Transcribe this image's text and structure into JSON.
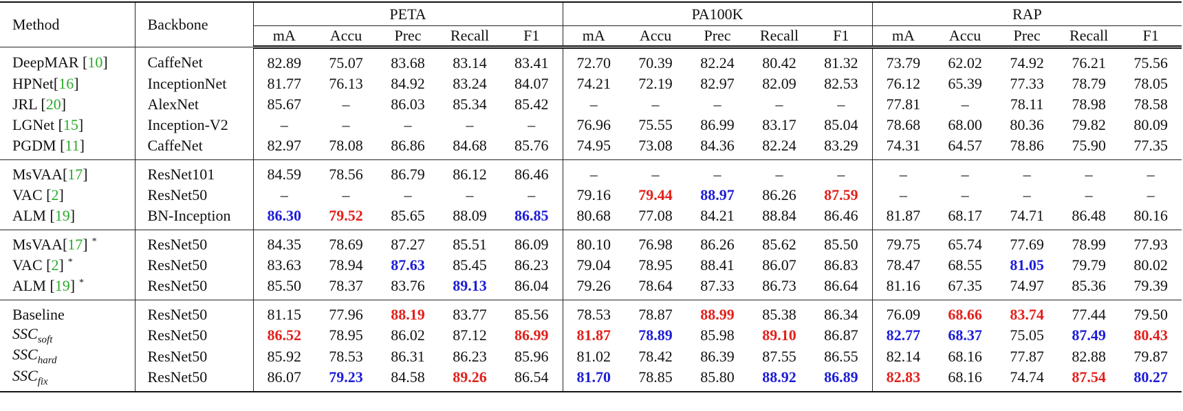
{
  "header": {
    "method": "Method",
    "backbone": "Backbone",
    "datasets": [
      {
        "name": "PETA",
        "metrics": [
          "mA",
          "Accu",
          "Prec",
          "Recall",
          "F1"
        ]
      },
      {
        "name": "PA100K",
        "metrics": [
          "mA",
          "Accu",
          "Prec",
          "Recall",
          "F1"
        ]
      },
      {
        "name": "RAP",
        "metrics": [
          "mA",
          "Accu",
          "Prec",
          "Recall",
          "F1"
        ]
      }
    ]
  },
  "groups": [
    {
      "rows": [
        {
          "method": [
            {
              "text": "DeepMAR ["
            },
            {
              "text": "10",
              "color": "#2aaa2a"
            },
            {
              "text": "]"
            }
          ],
          "backbone": "CaffeNet",
          "values": [
            "82.89",
            "75.07",
            "83.68",
            "83.14",
            "83.41",
            "72.70",
            "70.39",
            "82.24",
            "80.42",
            "81.32",
            "73.79",
            "62.02",
            "74.92",
            "76.21",
            "75.56"
          ]
        },
        {
          "method": [
            {
              "text": "HPNet["
            },
            {
              "text": "16",
              "color": "#2aaa2a"
            },
            {
              "text": "]"
            }
          ],
          "backbone": "InceptionNet",
          "values": [
            "81.77",
            "76.13",
            "84.92",
            "83.24",
            "84.07",
            "74.21",
            "72.19",
            "82.97",
            "82.09",
            "82.53",
            "76.12",
            "65.39",
            "77.33",
            "78.79",
            "78.05"
          ]
        },
        {
          "method": [
            {
              "text": "JRL ["
            },
            {
              "text": "20",
              "color": "#2aaa2a"
            },
            {
              "text": "]"
            }
          ],
          "backbone": "AlexNet",
          "values": [
            "85.67",
            "–",
            "86.03",
            "85.34",
            "85.42",
            "–",
            "–",
            "–",
            "–",
            "–",
            "77.81",
            "–",
            "78.11",
            "78.98",
            "78.58"
          ]
        },
        {
          "method": [
            {
              "text": "LGNet ["
            },
            {
              "text": "15",
              "color": "#2aaa2a"
            },
            {
              "text": "]"
            }
          ],
          "backbone": "Inception-V2",
          "values": [
            "–",
            "–",
            "–",
            "–",
            "–",
            "76.96",
            "75.55",
            "86.99",
            "83.17",
            "85.04",
            "78.68",
            "68.00",
            "80.36",
            "79.82",
            "80.09"
          ]
        },
        {
          "method": [
            {
              "text": "PGDM ["
            },
            {
              "text": "11",
              "color": "#2aaa2a"
            },
            {
              "text": "]"
            }
          ],
          "backbone": "CaffeNet",
          "values": [
            "82.97",
            "78.08",
            "86.86",
            "84.68",
            "85.76",
            "74.95",
            "73.08",
            "84.36",
            "82.24",
            "83.29",
            "74.31",
            "64.57",
            "78.86",
            "75.90",
            "77.35"
          ]
        }
      ]
    },
    {
      "rows": [
        {
          "method": [
            {
              "text": "MsVAA["
            },
            {
              "text": "17",
              "color": "#2aaa2a"
            },
            {
              "text": "]"
            }
          ],
          "backbone": "ResNet101",
          "values": [
            "84.59",
            "78.56",
            "86.79",
            "86.12",
            "86.46",
            "–",
            "–",
            "–",
            "–",
            "–",
            "–",
            "–",
            "–",
            "–",
            "–"
          ]
        },
        {
          "method": [
            {
              "text": "VAC ["
            },
            {
              "text": "2",
              "color": "#2aaa2a"
            },
            {
              "text": "]"
            }
          ],
          "backbone": "ResNet50",
          "values": [
            "–",
            "–",
            "–",
            "–",
            "–",
            "79.16",
            {
              "text": "79.44",
              "color": "#e3201b",
              "bold": true
            },
            {
              "text": "88.97",
              "color": "#1c1cd8",
              "bold": true
            },
            "86.26",
            {
              "text": "87.59",
              "color": "#e3201b",
              "bold": true
            },
            "–",
            "–",
            "–",
            "–",
            "–"
          ]
        },
        {
          "method": [
            {
              "text": "ALM ["
            },
            {
              "text": "19",
              "color": "#2aaa2a"
            },
            {
              "text": "]"
            }
          ],
          "backbone": "BN-Inception",
          "values": [
            {
              "text": "86.30",
              "color": "#1c1cd8",
              "bold": true
            },
            {
              "text": "79.52",
              "color": "#e3201b",
              "bold": true
            },
            "85.65",
            "88.09",
            {
              "text": "86.85",
              "color": "#1c1cd8",
              "bold": true
            },
            "80.68",
            "77.08",
            "84.21",
            "88.84",
            "86.46",
            "81.87",
            "68.17",
            "74.71",
            "86.48",
            "80.16"
          ]
        }
      ]
    },
    {
      "rows": [
        {
          "method": [
            {
              "text": "MsVAA["
            },
            {
              "text": "17",
              "color": "#2aaa2a"
            },
            {
              "text": "]"
            },
            {
              "text": "*",
              "sup": true
            }
          ],
          "backbone": "ResNet50",
          "values": [
            "84.35",
            "78.69",
            "87.27",
            "85.51",
            "86.09",
            "80.10",
            "76.98",
            "86.26",
            "85.62",
            "85.50",
            "79.75",
            "65.74",
            "77.69",
            "78.99",
            "77.93"
          ]
        },
        {
          "method": [
            {
              "text": "VAC ["
            },
            {
              "text": "2",
              "color": "#2aaa2a"
            },
            {
              "text": "]"
            },
            {
              "text": "*",
              "sup": true
            }
          ],
          "backbone": "ResNet50",
          "values": [
            "83.63",
            "78.94",
            {
              "text": "87.63",
              "color": "#1c1cd8",
              "bold": true
            },
            "85.45",
            "86.23",
            "79.04",
            "78.95",
            "88.41",
            "86.07",
            "86.83",
            "78.47",
            "68.55",
            {
              "text": "81.05",
              "color": "#1c1cd8",
              "bold": true
            },
            "79.79",
            "80.02"
          ]
        },
        {
          "method": [
            {
              "text": "ALM ["
            },
            {
              "text": "19",
              "color": "#2aaa2a"
            },
            {
              "text": "]"
            },
            {
              "text": "*",
              "sup": true
            }
          ],
          "backbone": "ResNet50",
          "values": [
            "85.50",
            "78.37",
            "83.76",
            {
              "text": "89.13",
              "color": "#1c1cd8",
              "bold": true
            },
            "86.04",
            "79.26",
            "78.64",
            "87.33",
            "86.73",
            "86.64",
            "81.16",
            "67.35",
            "74.97",
            "85.36",
            "79.39"
          ]
        }
      ]
    },
    {
      "rows": [
        {
          "method": [
            {
              "text": "Baseline"
            }
          ],
          "backbone": "ResNet50",
          "values": [
            "81.15",
            "77.96",
            {
              "text": "88.19",
              "color": "#e3201b",
              "bold": true
            },
            "83.77",
            "85.56",
            "78.53",
            "78.87",
            {
              "text": "88.99",
              "color": "#e3201b",
              "bold": true
            },
            "85.38",
            "86.34",
            "76.09",
            {
              "text": "68.66",
              "color": "#e3201b",
              "bold": true
            },
            {
              "text": "83.74",
              "color": "#e3201b",
              "bold": true
            },
            "77.44",
            "79.50"
          ]
        },
        {
          "method": [
            {
              "text": "SSC",
              "italic": true
            },
            {
              "text": "soft",
              "italic": true,
              "sub": true
            }
          ],
          "backbone": "ResNet50",
          "values": [
            {
              "text": "86.52",
              "color": "#e3201b",
              "bold": true
            },
            "78.95",
            "86.02",
            "87.12",
            {
              "text": "86.99",
              "color": "#e3201b",
              "bold": true
            },
            {
              "text": "81.87",
              "color": "#e3201b",
              "bold": true
            },
            {
              "text": "78.89",
              "color": "#1c1cd8",
              "bold": true
            },
            "85.98",
            {
              "text": "89.10",
              "color": "#e3201b",
              "bold": true
            },
            "86.87",
            {
              "text": "82.77",
              "color": "#1c1cd8",
              "bold": true
            },
            {
              "text": "68.37",
              "color": "#1c1cd8",
              "bold": true
            },
            "75.05",
            {
              "text": "87.49",
              "color": "#1c1cd8",
              "bold": true
            },
            {
              "text": "80.43",
              "color": "#e3201b",
              "bold": true
            }
          ]
        },
        {
          "method": [
            {
              "text": "SSC",
              "italic": true
            },
            {
              "text": "hard",
              "italic": true,
              "sub": true
            }
          ],
          "backbone": "ResNet50",
          "values": [
            "85.92",
            "78.53",
            "86.31",
            "86.23",
            "85.96",
            "81.02",
            "78.42",
            "86.39",
            "87.55",
            "86.55",
            "82.14",
            "68.16",
            "77.87",
            "82.88",
            "79.87"
          ]
        },
        {
          "method": [
            {
              "text": "SSC",
              "italic": true
            },
            {
              "text": "fix",
              "italic": true,
              "sub": true
            }
          ],
          "backbone": "ResNet50",
          "values": [
            "86.07",
            {
              "text": "79.23",
              "color": "#1c1cd8",
              "bold": true
            },
            "84.58",
            {
              "text": "89.26",
              "color": "#e3201b",
              "bold": true
            },
            "86.54",
            {
              "text": "81.70",
              "color": "#1c1cd8",
              "bold": true
            },
            "78.85",
            "85.80",
            {
              "text": "88.92",
              "color": "#1c1cd8",
              "bold": true
            },
            {
              "text": "86.89",
              "color": "#1c1cd8",
              "bold": true
            },
            {
              "text": "82.83",
              "color": "#e3201b",
              "bold": true
            },
            "68.16",
            "74.74",
            {
              "text": "87.54",
              "color": "#e3201b",
              "bold": true
            },
            {
              "text": "80.27",
              "color": "#1c1cd8",
              "bold": true
            }
          ]
        }
      ]
    }
  ]
}
